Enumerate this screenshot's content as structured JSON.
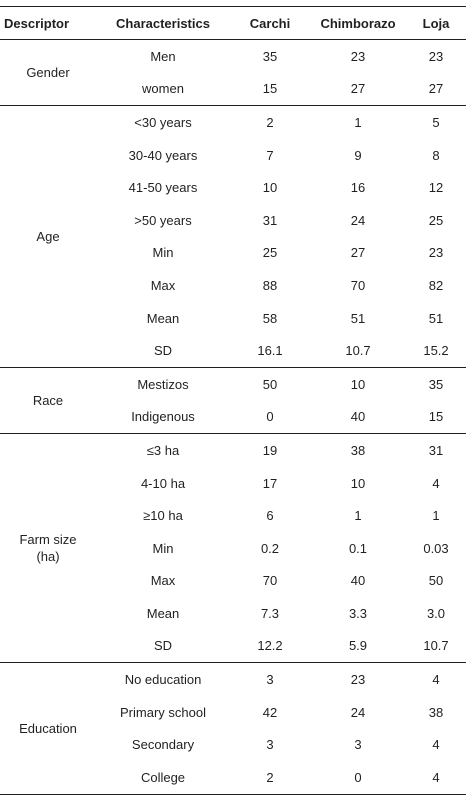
{
  "table": {
    "headers": [
      "Descriptor",
      "Characteristics",
      "Carchi",
      "Chimborazo",
      "Loja"
    ],
    "groups": [
      {
        "descriptor": "Gender",
        "rows": [
          {
            "characteristic": "Men",
            "carchi": "35",
            "chimborazo": "23",
            "loja": "23"
          },
          {
            "characteristic": "women",
            "carchi": "15",
            "chimborazo": "27",
            "loja": "27"
          }
        ]
      },
      {
        "descriptor": "Age",
        "rows": [
          {
            "characteristic": "<30 years",
            "carchi": "2",
            "chimborazo": "1",
            "loja": "5"
          },
          {
            "characteristic": "30-40 years",
            "carchi": "7",
            "chimborazo": "9",
            "loja": "8"
          },
          {
            "characteristic": "41-50 years",
            "carchi": "10",
            "chimborazo": "16",
            "loja": "12"
          },
          {
            "characteristic": ">50 years",
            "carchi": "31",
            "chimborazo": "24",
            "loja": "25"
          },
          {
            "characteristic": "Min",
            "carchi": "25",
            "chimborazo": "27",
            "loja": "23"
          },
          {
            "characteristic": "Max",
            "carchi": "88",
            "chimborazo": "70",
            "loja": "82"
          },
          {
            "characteristic": "Mean",
            "carchi": "58",
            "chimborazo": "51",
            "loja": "51"
          },
          {
            "characteristic": "SD",
            "carchi": "16.1",
            "chimborazo": "10.7",
            "loja": "15.2"
          }
        ]
      },
      {
        "descriptor": "Race",
        "rows": [
          {
            "characteristic": "Mestizos",
            "carchi": "50",
            "chimborazo": "10",
            "loja": "35"
          },
          {
            "characteristic": "Indigenous",
            "carchi": "0",
            "chimborazo": "40",
            "loja": "15"
          }
        ]
      },
      {
        "descriptor_line1": "Farm size",
        "descriptor_line2": "(ha)",
        "rows": [
          {
            "characteristic": "≤3 ha",
            "carchi": "19",
            "chimborazo": "38",
            "loja": "31"
          },
          {
            "characteristic": "4-10 ha",
            "carchi": "17",
            "chimborazo": "10",
            "loja": "4"
          },
          {
            "characteristic": "≥10 ha",
            "carchi": "6",
            "chimborazo": "1",
            "loja": "1"
          },
          {
            "characteristic": "Min",
            "carchi": "0.2",
            "chimborazo": "0.1",
            "loja": "0.03"
          },
          {
            "characteristic": "Max",
            "carchi": "70",
            "chimborazo": "40",
            "loja": "50"
          },
          {
            "characteristic": "Mean",
            "carchi": "7.3",
            "chimborazo": "3.3",
            "loja": "3.0"
          },
          {
            "characteristic": "SD",
            "carchi": "12.2",
            "chimborazo": "5.9",
            "loja": "10.7"
          }
        ]
      },
      {
        "descriptor": "Education",
        "rows": [
          {
            "characteristic": "No education",
            "carchi": "3",
            "chimborazo": "23",
            "loja": "4"
          },
          {
            "characteristic": "Primary school",
            "carchi": "42",
            "chimborazo": "24",
            "loja": "38"
          },
          {
            "characteristic": "Secondary",
            "carchi": "3",
            "chimborazo": "3",
            "loja": "4"
          },
          {
            "characteristic": "College",
            "carchi": "2",
            "chimborazo": "0",
            "loja": "4"
          }
        ]
      }
    ]
  }
}
